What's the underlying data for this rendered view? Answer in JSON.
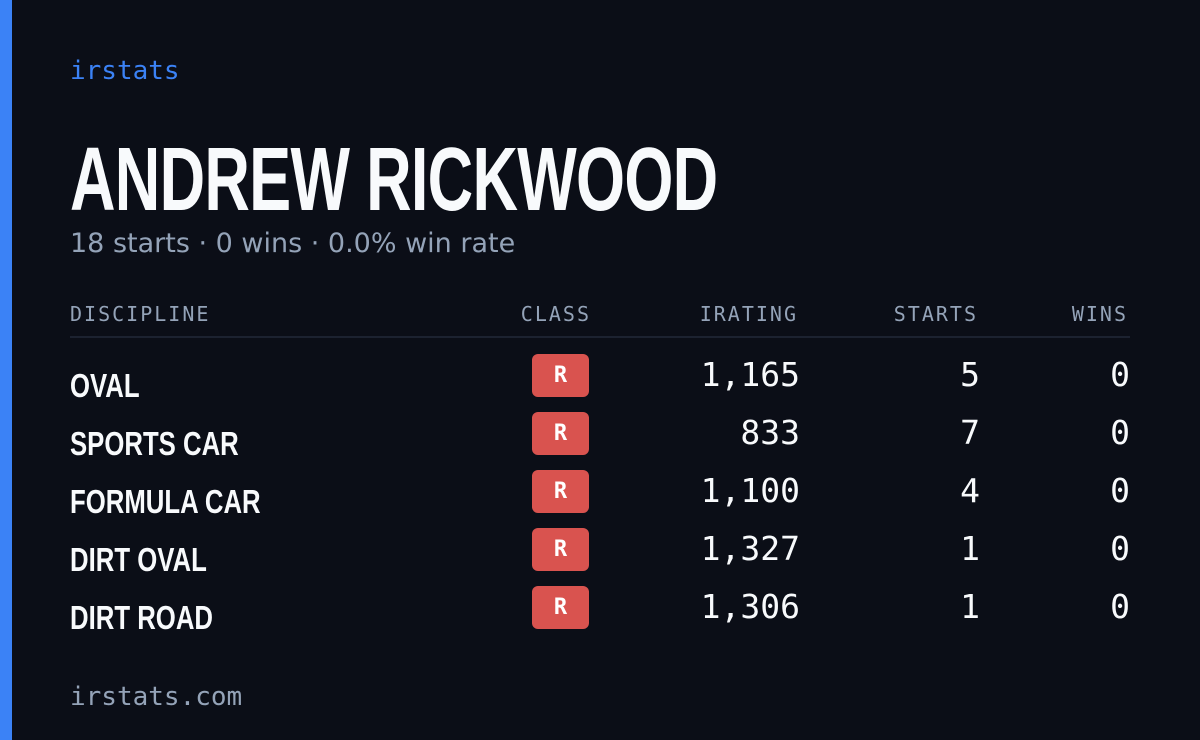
{
  "brand": "irstats",
  "header": {
    "name": "ANDREW RICKWOOD",
    "summary": "18 starts · 0 wins · 0.0% win rate"
  },
  "table": {
    "columns": [
      "DISCIPLINE",
      "CLASS",
      "IRATING",
      "STARTS",
      "WINS"
    ],
    "rows": [
      [
        "OVAL",
        "R",
        "1,165",
        "5",
        "0"
      ],
      [
        "SPORTS CAR",
        "R",
        "833",
        "7",
        "0"
      ],
      [
        "FORMULA CAR",
        "R",
        "1,100",
        "4",
        "0"
      ],
      [
        "DIRT OVAL",
        "R",
        "1,327",
        "1",
        "0"
      ],
      [
        "DIRT ROAD",
        "R",
        "1,306",
        "1",
        "0"
      ]
    ]
  },
  "footer": "irstats.com"
}
